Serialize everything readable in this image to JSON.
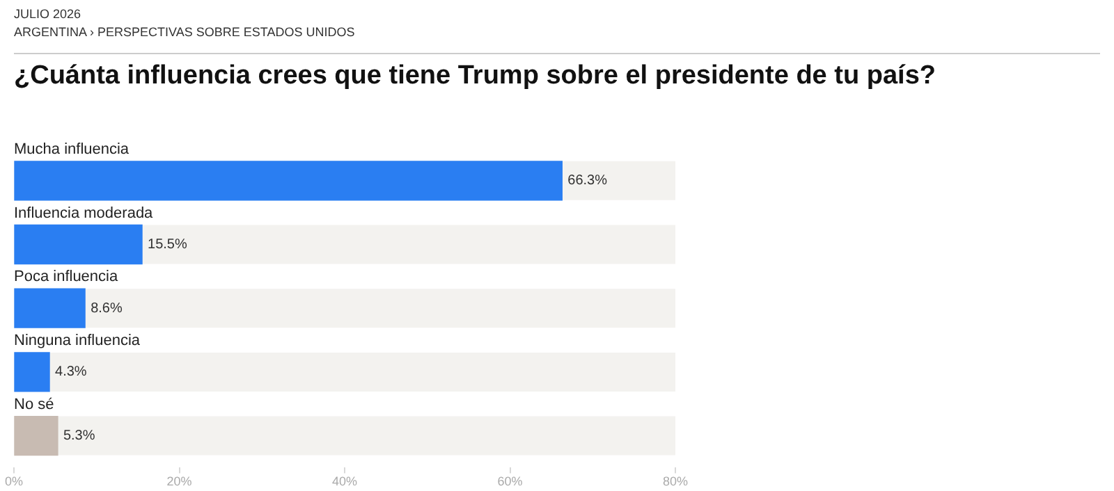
{
  "chart_data": {
    "type": "bar",
    "orientation": "horizontal",
    "title": "¿Cuánta influencia crees que tiene Trump sobre el presidente de tu país?",
    "annotations": [
      "JULIO 2026",
      "ARGENTINA › PERSPECTIVAS SOBRE ESTADOS UNIDOS"
    ],
    "categories": [
      "Mucha influencia",
      "Influencia moderada",
      "Poca influencia",
      "Ninguna influencia",
      "No sé"
    ],
    "values": [
      66.3,
      15.5,
      8.6,
      4.3,
      5.3
    ],
    "colors": [
      "#2a7ef2",
      "#2a7ef2",
      "#2a7ef2",
      "#2a7ef2",
      "#c8bbb2"
    ],
    "value_labels": [
      "66.3%",
      "15.5%",
      "8.6%",
      "4.3%",
      "5.3%"
    ],
    "xlim": [
      0,
      80
    ],
    "xticks": [
      {
        "value": 0,
        "label": "0%"
      },
      {
        "value": 20,
        "label": "20%"
      },
      {
        "value": 40,
        "label": "40%"
      },
      {
        "value": 60,
        "label": "60%"
      },
      {
        "value": 80,
        "label": "80%"
      }
    ],
    "grid": false,
    "legend": false
  }
}
